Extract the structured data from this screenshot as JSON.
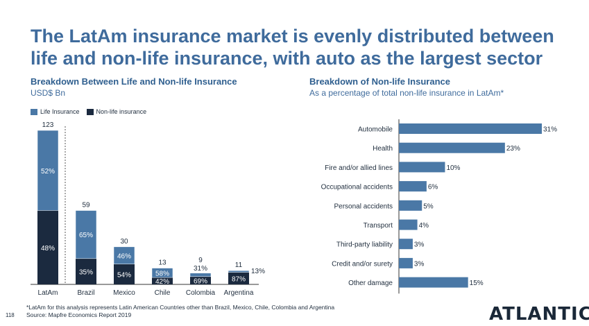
{
  "title": "The LatAm insurance market is evenly distributed between life and non-life insurance, with auto as the largest sector",
  "colors": {
    "life": "#4a78a6",
    "nonlife": "#1b2a3f",
    "hbar": "#4a78a6",
    "title": "#3f6b9c"
  },
  "left_panel": {
    "title": "Breakdown Between Life and Non-life Insurance",
    "subtitle": "USD$ Bn"
  },
  "right_panel": {
    "title": "Breakdown of Non-life Insurance",
    "subtitle": "As a percentage of total non-life insurance in LatAm*"
  },
  "footer": {
    "note": "*LatAm for this analysis represents Latin American Countries other than Brazil, Mexico, Chile, Colombia and Argentina",
    "source": "Source: Mapfre Economics Report 2019",
    "page_number": "118",
    "logo": "ATLANTICO"
  },
  "chart_data": [
    {
      "type": "bar",
      "stacked": true,
      "title": "Breakdown Between Life and Non-life Insurance",
      "ylabel": "USD$ Bn",
      "legend": "top-left",
      "categories": [
        "LatAm",
        "Brazil",
        "Mexico",
        "Chile",
        "Colombia",
        "Argentina"
      ],
      "totals": [
        123,
        59,
        30,
        13,
        9,
        11
      ],
      "series": [
        {
          "name": "Life Insurance",
          "values": [
            64,
            38.4,
            13.8,
            7.5,
            2.8,
            1.4
          ],
          "labels": [
            "52%",
            "65%",
            "46%",
            "58%",
            "31%",
            "13%"
          ]
        },
        {
          "name": "Non-life insurance",
          "values": [
            59,
            20.6,
            16.2,
            5.5,
            6.2,
            9.6
          ],
          "labels": [
            "48%",
            "35%",
            "54%",
            "42%",
            "69%",
            "87%"
          ]
        }
      ]
    },
    {
      "type": "bar",
      "orientation": "horizontal",
      "title": "Breakdown of Non-life Insurance",
      "categories": [
        "Automobile",
        "Health",
        "Fire and/or allied lines",
        "Occupational accidents",
        "Personal accidents",
        "Transport",
        "Third-party liability",
        "Credit and/or surety",
        "Other damage"
      ],
      "values": [
        31,
        23,
        10,
        6,
        5,
        4,
        3,
        3,
        15
      ],
      "labels": [
        "31%",
        "23%",
        "10%",
        "6%",
        "5%",
        "4%",
        "3%",
        "3%",
        "15%"
      ]
    }
  ]
}
